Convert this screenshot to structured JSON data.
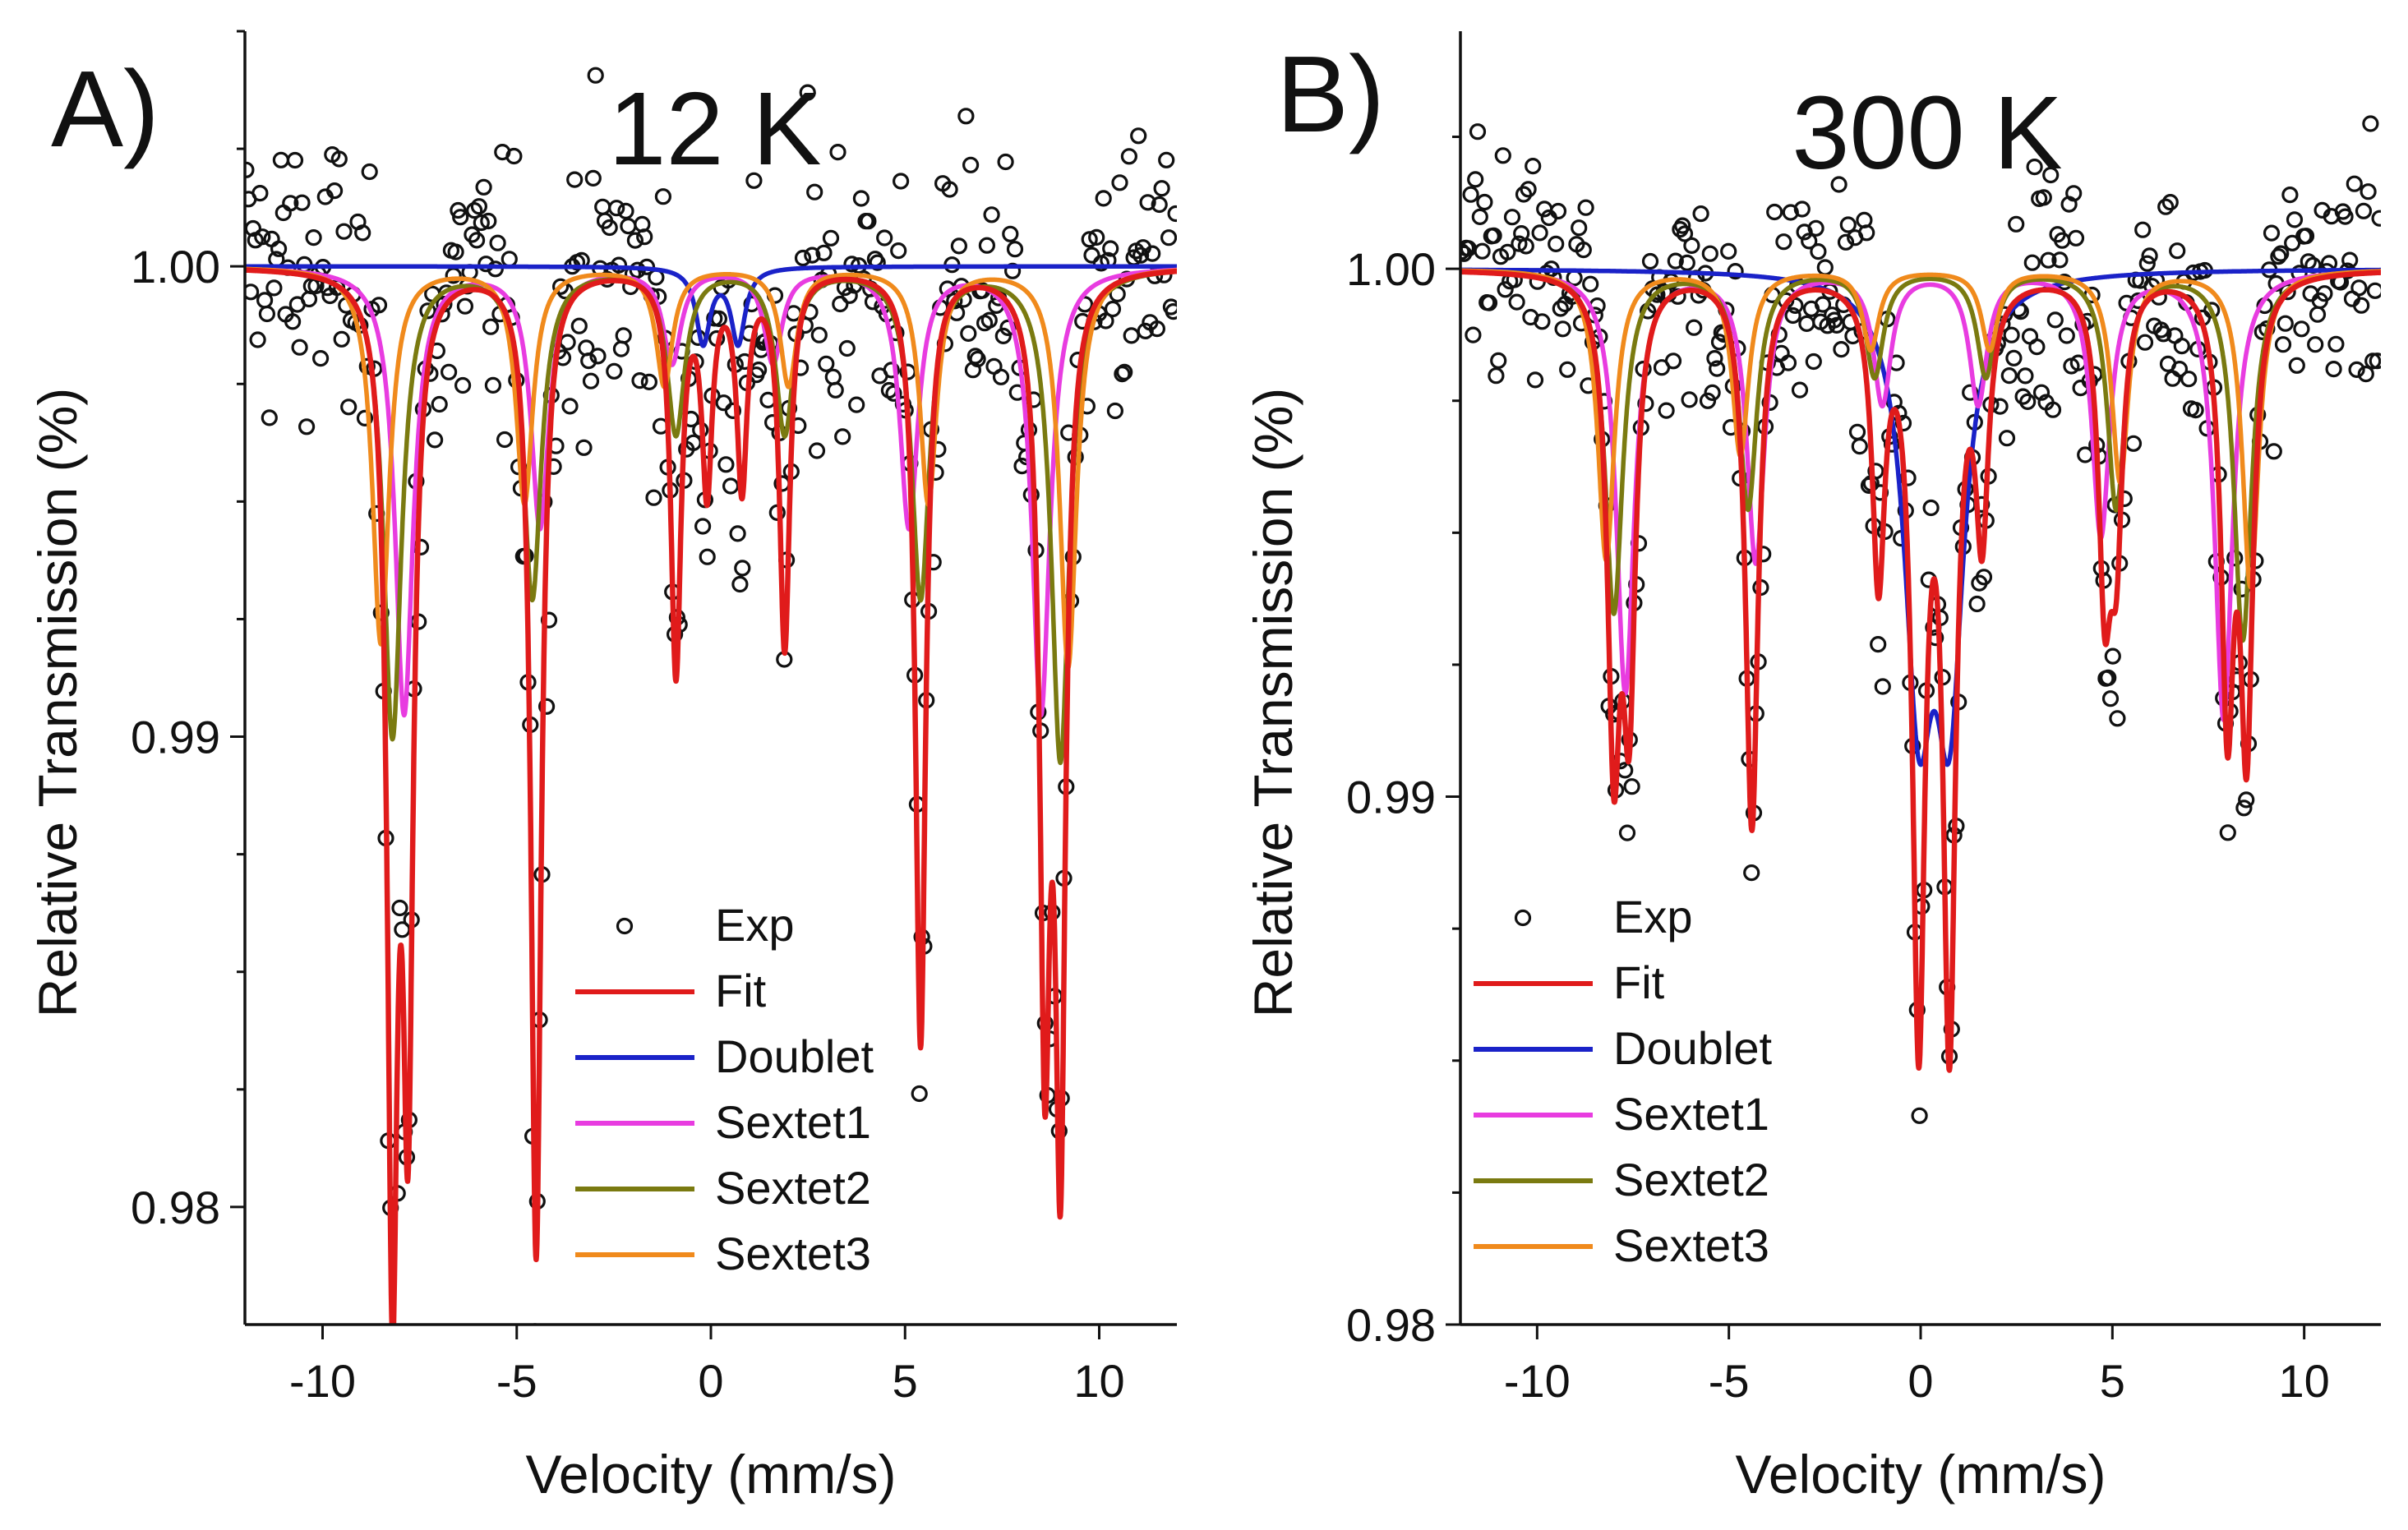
{
  "chart_data": [
    {
      "type": "scatter",
      "panel_label": "A)",
      "title": "12 K",
      "xlabel": "Velocity (mm/s)",
      "ylabel": "Relative Transmission (%)",
      "xlim": [
        -12,
        12
      ],
      "ylim": [
        0.9775,
        1.005
      ],
      "xticks": [
        -10,
        -5,
        0,
        5,
        10
      ],
      "xtick_labels": [
        "-10",
        "-5",
        "0",
        "5",
        "10"
      ],
      "yticks": [
        0.98,
        0.99,
        1.0
      ],
      "ytick_labels": [
        "0.98",
        "0.99",
        "1.00"
      ],
      "legend": {
        "position": "bottom-center",
        "entries": [
          {
            "label": "Exp",
            "marker": "circle",
            "color": "#111111"
          },
          {
            "label": "Fit",
            "color": "#e01b1b"
          },
          {
            "label": "Doublet",
            "color": "#1a22c8"
          },
          {
            "label": "Sextet1",
            "color": "#e83ce0"
          },
          {
            "label": "Sextet2",
            "color": "#7a7a10"
          },
          {
            "label": "Sextet3",
            "color": "#f08a1c"
          }
        ]
      },
      "components": [
        {
          "name": "Doublet",
          "color": "#1a22c8",
          "width": 0.22,
          "lines": [
            [
              -0.2,
              0.0016
            ],
            [
              0.7,
              0.0016
            ]
          ]
        },
        {
          "name": "Sextet1",
          "color": "#e83ce0",
          "width": 0.28,
          "lines": [
            [
              -7.9,
              0.0095
            ],
            [
              -4.4,
              0.0055
            ],
            [
              -1.0,
              0.002
            ],
            [
              1.6,
              0.002
            ],
            [
              5.1,
              0.0055
            ],
            [
              8.5,
              0.0095
            ]
          ]
        },
        {
          "name": "Sextet2",
          "color": "#7a7a10",
          "width": 0.28,
          "lines": [
            [
              -8.2,
              0.01
            ],
            [
              -4.6,
              0.007
            ],
            [
              -0.9,
              0.0035
            ],
            [
              1.9,
              0.0035
            ],
            [
              5.4,
              0.007
            ],
            [
              9.0,
              0.0105
            ]
          ]
        },
        {
          "name": "Sextet3",
          "color": "#f08a1c",
          "width": 0.26,
          "lines": [
            [
              -8.5,
              0.008
            ],
            [
              -4.8,
              0.005
            ],
            [
              -1.2,
              0.0025
            ],
            [
              2.0,
              0.0025
            ],
            [
              5.6,
              0.005
            ],
            [
              9.2,
              0.0085
            ]
          ]
        }
      ],
      "fit": {
        "name": "Fit",
        "color": "#e01b1b",
        "lines": [
          [
            -8.2,
            0.0205
          ],
          [
            -7.8,
            0.0165
          ],
          [
            -4.5,
            0.021
          ],
          [
            -0.9,
            0.0085
          ],
          [
            -0.1,
            0.0045
          ],
          [
            0.8,
            0.0045
          ],
          [
            1.9,
            0.008
          ],
          [
            5.4,
            0.0165
          ],
          [
            8.6,
            0.0155
          ],
          [
            9.0,
            0.018
          ]
        ],
        "width": 0.16
      },
      "exp_noise": 0.0016
    },
    {
      "type": "scatter",
      "panel_label": "B)",
      "title": "300 K",
      "xlabel": "Velocity (mm/s)",
      "ylabel": "Relative Transmission (%)",
      "xlim": [
        -12,
        12
      ],
      "ylim": [
        0.98,
        1.0045
      ],
      "xticks": [
        -10,
        -5,
        0,
        5,
        10
      ],
      "xtick_labels": [
        "-10",
        "-5",
        "0",
        "5",
        "10"
      ],
      "yticks": [
        0.98,
        0.99,
        1.0
      ],
      "ytick_labels": [
        "0.98",
        "0.99",
        "1.00"
      ],
      "legend": {
        "position": "bottom-left",
        "entries": [
          {
            "label": "Exp",
            "marker": "circle",
            "color": "#111111"
          },
          {
            "label": "Fit",
            "color": "#e01b1b"
          },
          {
            "label": "Doublet",
            "color": "#1a22c8"
          },
          {
            "label": "Sextet1",
            "color": "#e83ce0"
          },
          {
            "label": "Sextet2",
            "color": "#7a7a10"
          },
          {
            "label": "Sextet3",
            "color": "#f08a1c"
          }
        ]
      },
      "components": [
        {
          "name": "Doublet",
          "color": "#1a22c8",
          "width": 0.45,
          "lines": [
            [
              -0.05,
              0.0075
            ],
            [
              0.75,
              0.0075
            ]
          ]
        },
        {
          "name": "Sextet1",
          "color": "#e83ce0",
          "width": 0.28,
          "lines": [
            [
              -7.7,
              0.008
            ],
            [
              -4.3,
              0.0055
            ],
            [
              -1.0,
              0.0025
            ],
            [
              1.5,
              0.0025
            ],
            [
              4.7,
              0.005
            ],
            [
              7.9,
              0.0085
            ]
          ]
        },
        {
          "name": "Sextet2",
          "color": "#7a7a10",
          "width": 0.28,
          "lines": [
            [
              -8.0,
              0.0065
            ],
            [
              -4.5,
              0.0045
            ],
            [
              -1.2,
              0.002
            ],
            [
              1.7,
              0.002
            ],
            [
              5.1,
              0.0045
            ],
            [
              8.4,
              0.007
            ]
          ]
        },
        {
          "name": "Sextet3",
          "color": "#f08a1c",
          "width": 0.26,
          "lines": [
            [
              -8.2,
              0.0055
            ],
            [
              -4.7,
              0.0035
            ],
            [
              -1.3,
              0.0015
            ],
            [
              1.8,
              0.0015
            ],
            [
              5.2,
              0.004
            ],
            [
              8.6,
              0.006
            ]
          ]
        }
      ],
      "fit": {
        "name": "Fit",
        "color": "#e01b1b",
        "lines": [
          [
            -8.0,
            0.0085
          ],
          [
            -7.6,
            0.0075
          ],
          [
            -4.4,
            0.0105
          ],
          [
            -1.1,
            0.0055
          ],
          [
            -0.05,
            0.014
          ],
          [
            0.75,
            0.014
          ],
          [
            1.6,
            0.0045
          ],
          [
            4.8,
            0.0055
          ],
          [
            5.1,
            0.0045
          ],
          [
            8.0,
            0.008
          ],
          [
            8.5,
            0.0085
          ]
        ],
        "width": 0.2
      },
      "exp_noise": 0.0011
    }
  ]
}
